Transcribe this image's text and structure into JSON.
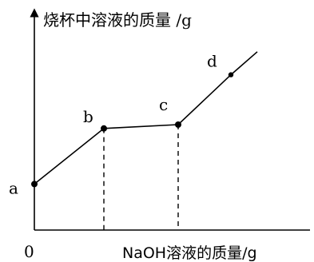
{
  "chart_data": {
    "type": "line",
    "ylabel": "烧杯中溶液的质量 /g",
    "xlabel": "NaOH溶液的质量/g",
    "origin_label": "0",
    "points": [
      {
        "label": "a",
        "x": 0,
        "y": 2.4
      },
      {
        "label": "b",
        "x": 2.9,
        "y": 5.3
      },
      {
        "label": "c",
        "x": 6.0,
        "y": 5.5
      },
      {
        "label": "d",
        "x": 8.2,
        "y": 8.1
      }
    ],
    "line_end": {
      "x": 9.3,
      "y": 9.3
    },
    "dashed_drops": [
      "b",
      "c"
    ],
    "xlim": [
      0,
      10
    ],
    "ylim": [
      0,
      11
    ]
  }
}
